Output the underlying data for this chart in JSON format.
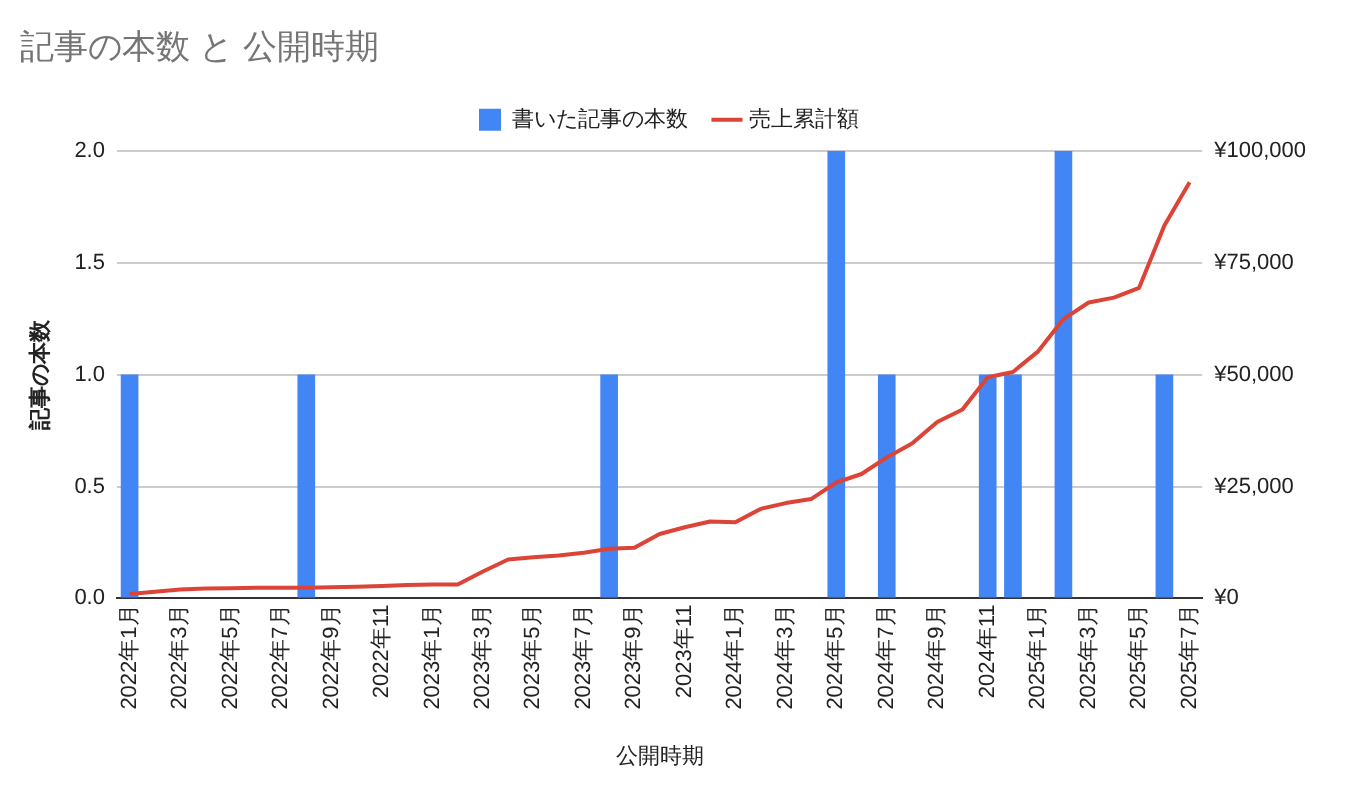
{
  "chart_data": {
    "type": "bar",
    "title": "記事の本数 と 公開時期",
    "xlabel": "公開時期",
    "ylabel": "記事の本数",
    "categories": [
      "2022年1月",
      null,
      "2022年3月",
      null,
      "2022年5月",
      null,
      "2022年7月",
      null,
      "2022年9月",
      null,
      "2022年11",
      null,
      "2023年1月",
      null,
      "2023年3月",
      null,
      "2023年5月",
      null,
      "2023年7月",
      null,
      "2023年9月",
      null,
      "2023年11",
      null,
      "2024年1月",
      null,
      "2024年3月",
      null,
      "2024年5月",
      null,
      "2024年7月",
      null,
      "2024年9月",
      null,
      "2024年11",
      null,
      "2025年1月",
      null,
      "2025年3月",
      null,
      "2025年5月",
      null,
      "2025年7月"
    ],
    "series": [
      {
        "name": "書いた記事の本数",
        "color": "#4285f4",
        "values": [
          1,
          null,
          null,
          null,
          null,
          null,
          null,
          1,
          null,
          null,
          null,
          null,
          null,
          null,
          null,
          null,
          null,
          null,
          null,
          1,
          null,
          null,
          null,
          null,
          null,
          null,
          null,
          null,
          2,
          null,
          1,
          null,
          null,
          null,
          1,
          1,
          null,
          2,
          null,
          null,
          null,
          1,
          null
        ]
      },
      {
        "name": "売上累計額",
        "type": "line",
        "axis": "y2",
        "color": "#db4437",
        "values": [
          1000,
          1500,
          2000,
          2200,
          2300,
          2400,
          2400,
          2400,
          2500,
          2600,
          2800,
          3000,
          3100,
          3100,
          6000,
          8700,
          9200,
          9600,
          10200,
          11100,
          11300,
          14400,
          15900,
          17200,
          17000,
          20000,
          21300,
          22200,
          25900,
          27800,
          31500,
          34600,
          39400,
          42200,
          49400,
          50600,
          55200,
          62400,
          66100,
          67200,
          69400,
          83300,
          93000
        ]
      }
    ],
    "ylim": [
      0,
      2
    ],
    "yticks": [
      {
        "value": 0,
        "label": "0.0"
      },
      {
        "value": 0.5,
        "label": "0.5"
      },
      {
        "value": 1,
        "label": "1.0"
      },
      {
        "value": 1.5,
        "label": "1.5"
      },
      {
        "value": 2,
        "label": "2.0"
      }
    ],
    "y2lim": [
      0,
      100000
    ],
    "y2ticks": [
      {
        "value": 0,
        "label": "¥0"
      },
      {
        "value": 25000,
        "label": "¥25,000"
      },
      {
        "value": 50000,
        "label": "¥50,000"
      },
      {
        "value": 75000,
        "label": "¥75,000"
      },
      {
        "value": 100000,
        "label": "¥100,000"
      }
    ],
    "grid": "y",
    "legend": "top",
    "marker": "none",
    "line_style": "solid"
  }
}
